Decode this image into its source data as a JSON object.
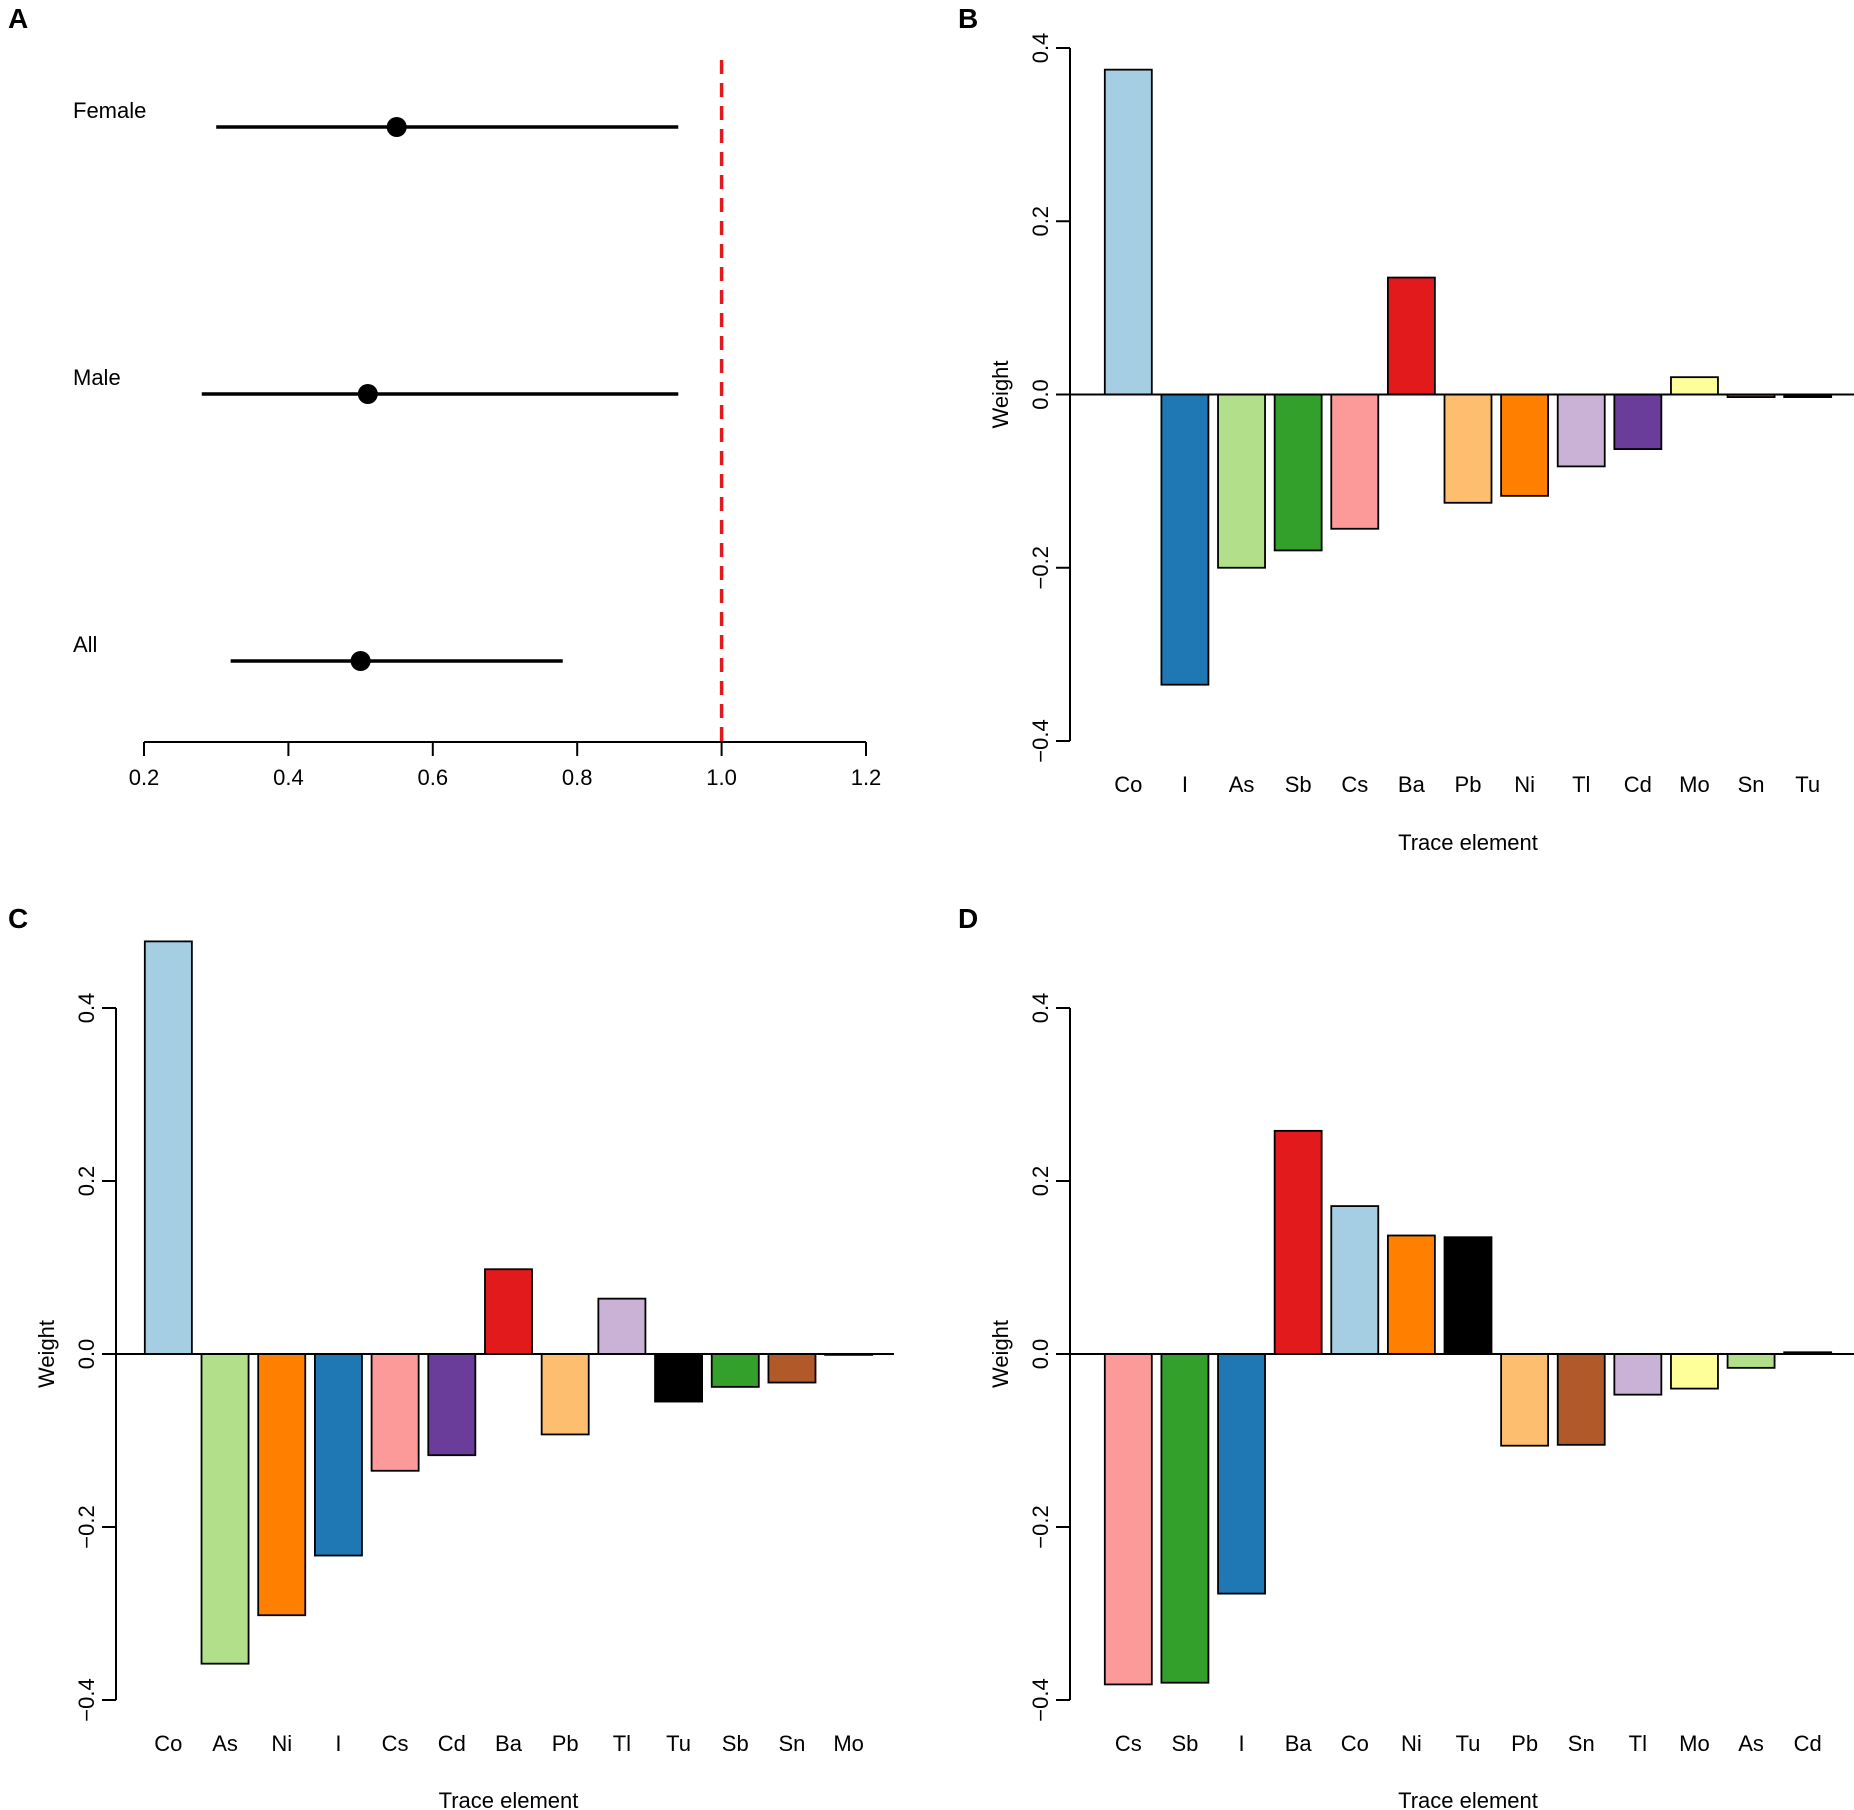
{
  "chart_data": [
    {
      "panel": "A",
      "type": "forest",
      "groups": [
        {
          "label": "Female",
          "estimate": 0.55,
          "lower": 0.3,
          "upper": 0.94
        },
        {
          "label": "Male",
          "estimate": 0.51,
          "lower": 0.28,
          "upper": 0.94
        },
        {
          "label": "All",
          "estimate": 0.5,
          "lower": 0.32,
          "upper": 0.78
        }
      ],
      "xticks": [
        "0.2",
        "0.4",
        "0.6",
        "0.8",
        "1.0",
        "1.2"
      ],
      "xlim": [
        0.2,
        1.2
      ],
      "reference_line": 1.0,
      "colors": {
        "reference": "#e31a1c",
        "marks": "#000000"
      }
    },
    {
      "panel": "B",
      "type": "bar",
      "xlabel": "Trace element",
      "ylabel": "Weight",
      "ylim": [
        -0.4,
        0.4
      ],
      "yticks": [
        "−0.4",
        "−0.2",
        "0.0",
        "0.2",
        "0.4"
      ],
      "categories": [
        "Co",
        "I",
        "As",
        "Sb",
        "Cs",
        "Ba",
        "Pb",
        "Ni",
        "Tl",
        "Cd",
        "Mo",
        "Sn",
        "Tu"
      ],
      "values": [
        0.375,
        -0.335,
        -0.2,
        -0.18,
        -0.155,
        0.135,
        -0.125,
        -0.117,
        -0.083,
        -0.063,
        0.02,
        -0.003,
        -0.003
      ],
      "colors": [
        "#a6cee3",
        "#1f78b4",
        "#b2df8a",
        "#33a02c",
        "#fb9a99",
        "#e31a1c",
        "#fdbf6f",
        "#ff7f00",
        "#cab2d6",
        "#6a3d9a",
        "#ffff99",
        "#b15928",
        "#000000"
      ]
    },
    {
      "panel": "C",
      "type": "bar",
      "xlabel": "Trace element",
      "ylabel": "Weight",
      "ylim": [
        -0.4,
        0.4
      ],
      "yticks": [
        "−0.4",
        "−0.2",
        "0.0",
        "0.2",
        "0.4"
      ],
      "categories": [
        "Co",
        "As",
        "Ni",
        "I",
        "Cs",
        "Cd",
        "Ba",
        "Pb",
        "Tl",
        "Tu",
        "Sb",
        "Sn",
        "Mo"
      ],
      "values": [
        0.477,
        -0.358,
        -0.302,
        -0.233,
        -0.135,
        -0.117,
        0.098,
        -0.093,
        0.064,
        -0.055,
        -0.038,
        -0.033,
        -0.001
      ],
      "colors": [
        "#a6cee3",
        "#b2df8a",
        "#ff7f00",
        "#1f78b4",
        "#fb9a99",
        "#6a3d9a",
        "#e31a1c",
        "#fdbf6f",
        "#cab2d6",
        "#000000",
        "#33a02c",
        "#b15928",
        "#ffff99"
      ]
    },
    {
      "panel": "D",
      "type": "bar",
      "xlabel": "Trace element",
      "ylabel": "Weight",
      "ylim": [
        -0.4,
        0.4
      ],
      "yticks": [
        "−0.4",
        "−0.2",
        "0.0",
        "0.2",
        "0.4"
      ],
      "categories": [
        "Cs",
        "Sb",
        "I",
        "Ba",
        "Co",
        "Ni",
        "Tu",
        "Pb",
        "Sn",
        "Tl",
        "Mo",
        "As",
        "Cd"
      ],
      "values": [
        -0.382,
        -0.38,
        -0.277,
        0.258,
        0.171,
        0.137,
        0.135,
        -0.106,
        -0.105,
        -0.047,
        -0.04,
        -0.016,
        0.002
      ],
      "colors": [
        "#fb9a99",
        "#33a02c",
        "#1f78b4",
        "#e31a1c",
        "#a6cee3",
        "#ff7f00",
        "#000000",
        "#fdbf6f",
        "#b15928",
        "#cab2d6",
        "#ffff99",
        "#b2df8a",
        "#6a3d9a"
      ]
    }
  ]
}
